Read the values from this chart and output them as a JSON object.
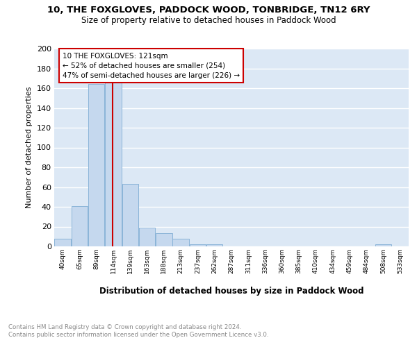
{
  "title": "10, THE FOXGLOVES, PADDOCK WOOD, TONBRIDGE, TN12 6RY",
  "subtitle": "Size of property relative to detached houses in Paddock Wood",
  "xlabel": "Distribution of detached houses by size in Paddock Wood",
  "ylabel": "Number of detached properties",
  "bar_color": "#c5d8ee",
  "bar_edge_color": "#8ab4d8",
  "bg_color": "#dce8f5",
  "grid_color": "white",
  "annotation_box_color": "#cc0000",
  "annotation_text": "10 THE FOXGLOVES: 121sqm\n← 52% of detached houses are smaller (254)\n47% of semi-detached houses are larger (226) →",
  "vline_x": 114,
  "vline_color": "#cc0000",
  "categories": [
    "40sqm",
    "65sqm",
    "89sqm",
    "114sqm",
    "139sqm",
    "163sqm",
    "188sqm",
    "213sqm",
    "237sqm",
    "262sqm",
    "287sqm",
    "311sqm",
    "336sqm",
    "360sqm",
    "385sqm",
    "410sqm",
    "434sqm",
    "459sqm",
    "484sqm",
    "508sqm",
    "533sqm"
  ],
  "bin_edges": [
    27.5,
    52.5,
    77.5,
    102.5,
    127.5,
    152.5,
    177.5,
    202.5,
    227.5,
    252.5,
    277.5,
    302.5,
    327.5,
    352.5,
    377.5,
    402.5,
    427.5,
    452.5,
    477.5,
    502.5,
    527.5,
    552.5
  ],
  "values": [
    8,
    41,
    164,
    168,
    63,
    19,
    13,
    8,
    2,
    2,
    0,
    0,
    0,
    0,
    0,
    0,
    0,
    0,
    0,
    2,
    0
  ],
  "ylim": [
    0,
    200
  ],
  "yticks": [
    0,
    20,
    40,
    60,
    80,
    100,
    120,
    140,
    160,
    180,
    200
  ],
  "footnote": "Contains HM Land Registry data © Crown copyright and database right 2024.\nContains public sector information licensed under the Open Government Licence v3.0.",
  "footnote_color": "#888888"
}
